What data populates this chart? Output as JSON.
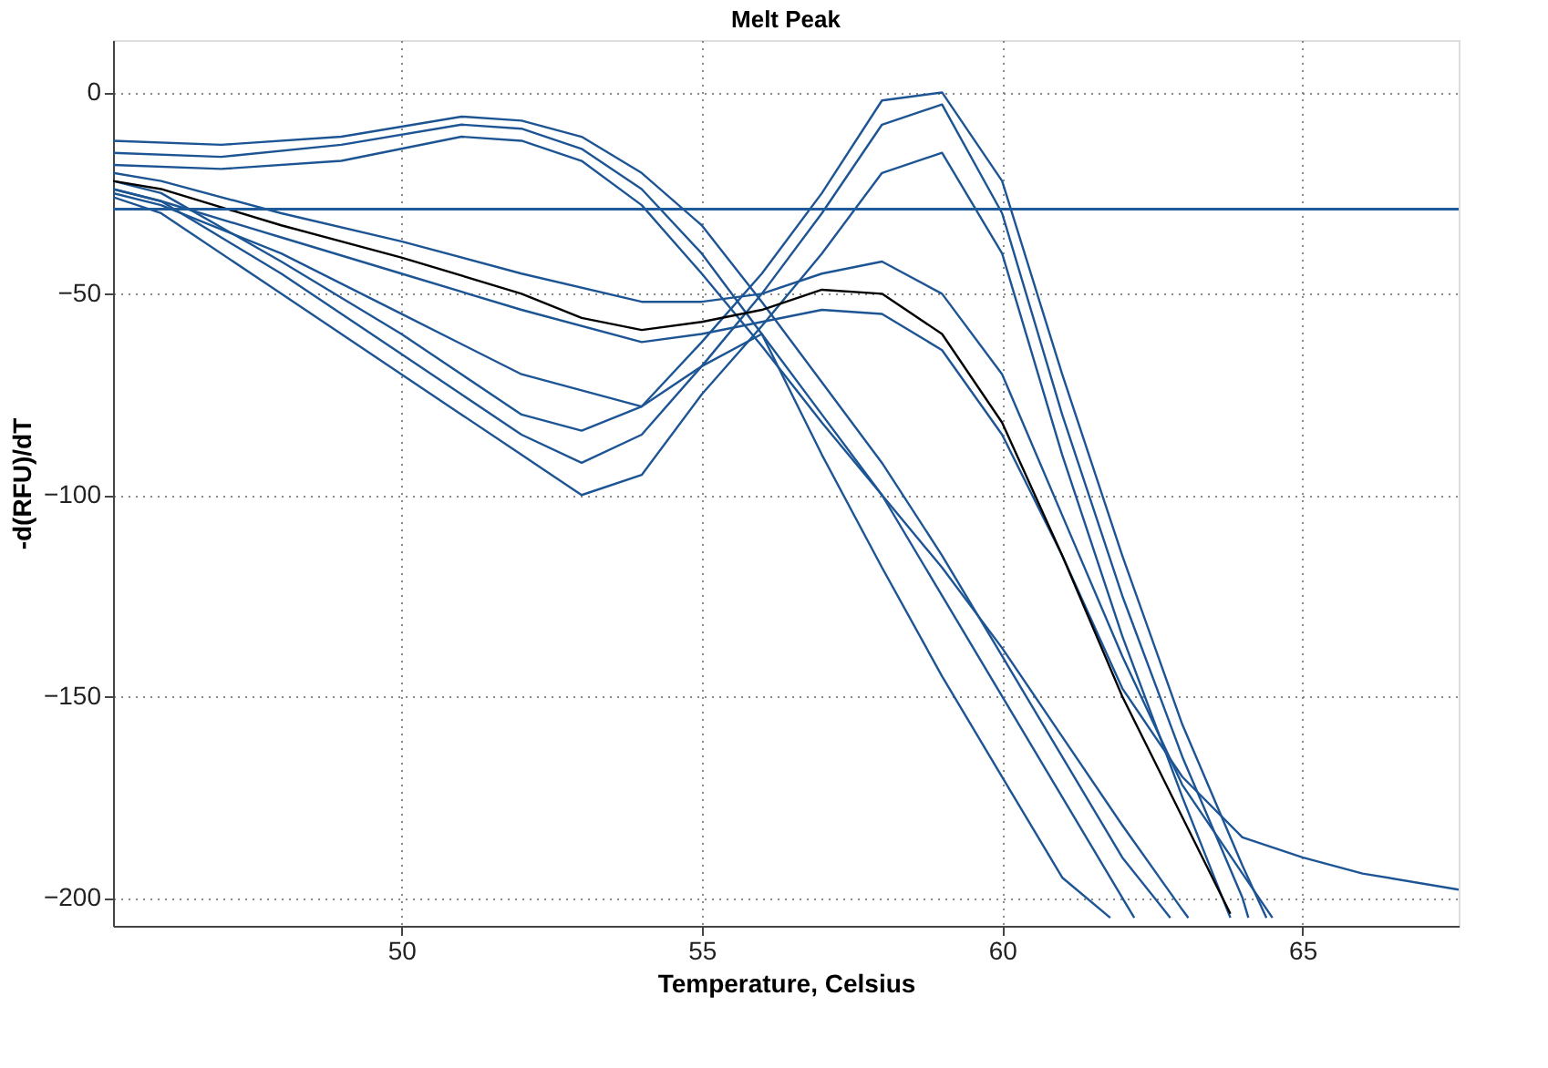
{
  "chart_data": {
    "type": "line",
    "title": "Melt Peak",
    "xlabel": "Temperature, Celsius",
    "ylabel": "-d(RFU)/dT",
    "xlim": [
      45.2,
      67.6
    ],
    "ylim": [
      -207,
      13
    ],
    "xticks": [
      50,
      55,
      60,
      65
    ],
    "yticks": [
      0,
      -50,
      -100,
      -150,
      -200
    ],
    "grid": true,
    "legend": false,
    "line_style": "solid",
    "ref_lines": [
      {
        "axis": "y",
        "value": -29,
        "color": "#1f5a9a"
      }
    ],
    "series": [
      {
        "color": "#1d5594",
        "x": [
          45.2,
          47,
          49,
          51,
          52,
          53,
          54,
          55,
          56,
          57,
          58,
          59,
          60,
          61,
          62,
          62.2
        ],
        "values": [
          -15,
          -16,
          -13,
          -8,
          -9,
          -14,
          -24,
          -40,
          -60,
          -80,
          -100,
          -125,
          -150,
          -175,
          -200,
          -205
        ]
      },
      {
        "color": "#1d5594",
        "x": [
          45.2,
          47,
          49,
          51,
          52,
          53,
          54,
          55,
          56,
          57,
          58,
          59,
          60,
          61,
          62,
          62.8
        ],
        "values": [
          -12,
          -13,
          -11,
          -6,
          -7,
          -11,
          -20,
          -33,
          -52,
          -72,
          -92,
          -115,
          -140,
          -165,
          -190,
          -205
        ]
      },
      {
        "color": "#1d5594",
        "x": [
          45.2,
          47,
          49,
          51,
          52,
          53,
          54,
          55,
          56,
          57,
          58,
          59,
          60,
          61,
          62,
          63,
          63.1
        ],
        "values": [
          -18,
          -19,
          -17,
          -11,
          -12,
          -17,
          -28,
          -45,
          -63,
          -82,
          -100,
          -118,
          -138,
          -160,
          -182,
          -203,
          -205
        ]
      },
      {
        "color": "#1d5594",
        "x": [
          45.2,
          46,
          48,
          50,
          52,
          54,
          55,
          56,
          57,
          58,
          59,
          60,
          61,
          62,
          63,
          64.5
        ],
        "values": [
          -20,
          -22,
          -30,
          -37,
          -45,
          -52,
          -52,
          -50,
          -45,
          -42,
          -50,
          -70,
          -105,
          -140,
          -172,
          -205
        ]
      },
      {
        "color": "#1d5594",
        "x": [
          45.2,
          46,
          48,
          50,
          52,
          54,
          55,
          56,
          57,
          58,
          59,
          60,
          61,
          62,
          63,
          64,
          65,
          66,
          67.6
        ],
        "values": [
          -24,
          -27,
          -36,
          -45,
          -54,
          -62,
          -60,
          -57,
          -54,
          -55,
          -64,
          -85,
          -115,
          -148,
          -170,
          -185,
          -190,
          -194,
          -198
        ]
      },
      {
        "color": "#1d5594",
        "x": [
          45.2,
          46,
          48,
          50,
          51,
          52,
          53,
          54,
          55,
          56,
          57,
          58,
          59,
          60,
          61,
          62,
          63,
          64,
          64.1
        ],
        "values": [
          -24,
          -27,
          -45,
          -65,
          -75,
          -85,
          -92,
          -85,
          -68,
          -50,
          -30,
          -8,
          -3,
          -30,
          -80,
          -125,
          -165,
          -200,
          -205
        ]
      },
      {
        "color": "#1d5594",
        "x": [
          45.2,
          46,
          48,
          50,
          51,
          52,
          53,
          54,
          55,
          56,
          57,
          58,
          59,
          60,
          61,
          62,
          63,
          64,
          64.4
        ],
        "values": [
          -22,
          -25,
          -42,
          -60,
          -70,
          -80,
          -84,
          -78,
          -62,
          -45,
          -25,
          -2,
          0,
          -22,
          -70,
          -115,
          -157,
          -192,
          -205
        ]
      },
      {
        "color": "#1d5594",
        "x": [
          45.2,
          46,
          48,
          50,
          51,
          52,
          53,
          54,
          55,
          56,
          57,
          58,
          59,
          60,
          61,
          62,
          63,
          63.8
        ],
        "values": [
          -26,
          -30,
          -50,
          -70,
          -80,
          -90,
          -100,
          -95,
          -75,
          -58,
          -40,
          -20,
          -15,
          -40,
          -90,
          -135,
          -175,
          -205
        ]
      },
      {
        "color": "#1d5594",
        "x": [
          45.2,
          46,
          48,
          50,
          52,
          54,
          55,
          56,
          57,
          58,
          59,
          60,
          61,
          61.8
        ],
        "values": [
          -25,
          -28,
          -40,
          -55,
          -70,
          -78,
          -68,
          -60,
          -90,
          -118,
          -145,
          -170,
          -195,
          -205
        ]
      },
      {
        "color": "#000000",
        "x": [
          45.2,
          46,
          48,
          50,
          52,
          53,
          54,
          55,
          56,
          57,
          58,
          59,
          60,
          61,
          62,
          63,
          63.8
        ],
        "values": [
          -22,
          -24,
          -33,
          -41,
          -50,
          -56,
          -59,
          -57,
          -54,
          -49,
          -50,
          -60,
          -82,
          -115,
          -150,
          -180,
          -204
        ]
      }
    ]
  }
}
